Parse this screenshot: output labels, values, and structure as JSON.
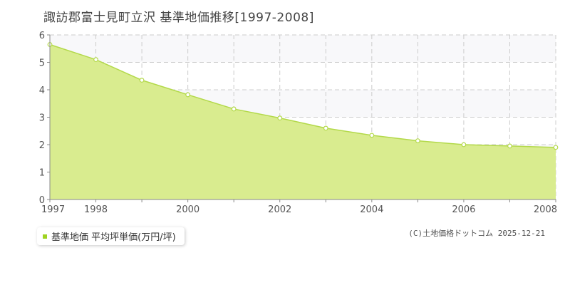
{
  "title": "諏訪郡富士見町立沢 基準地価推移[1997-2008]",
  "legend_label": "基準地価 平均坪単価(万円/坪)",
  "copyright": "(C)土地価格ドットコム 2025-12-21",
  "colors": {
    "area_fill": "#d9ec8f",
    "line": "#b3d94a",
    "marker": "#9fd321",
    "band": "#f8f8fa",
    "grid": "#cccccc"
  },
  "chart_data": {
    "type": "area",
    "x": [
      1997,
      1998,
      1999,
      2000,
      2001,
      2002,
      2003,
      2004,
      2005,
      2006,
      2007,
      2008
    ],
    "x_tick_labels": [
      "1997",
      "1998",
      "2000",
      "2002",
      "2004",
      "2006",
      "2008"
    ],
    "x_tick_values": [
      1997,
      1998,
      2000,
      2002,
      2004,
      2006,
      2008
    ],
    "y_tick_labels": [
      "0",
      "1",
      "2",
      "3",
      "4",
      "5",
      "6"
    ],
    "series": [
      {
        "name": "基準地価 平均坪単価(万円/坪)",
        "values": [
          5.65,
          5.1,
          4.35,
          3.82,
          3.3,
          2.97,
          2.6,
          2.34,
          2.14,
          2.0,
          1.95,
          1.9
        ]
      }
    ],
    "xlim": [
      1997,
      2008
    ],
    "ylim": [
      0,
      6
    ],
    "grid": true,
    "legend": "bottom-left"
  }
}
